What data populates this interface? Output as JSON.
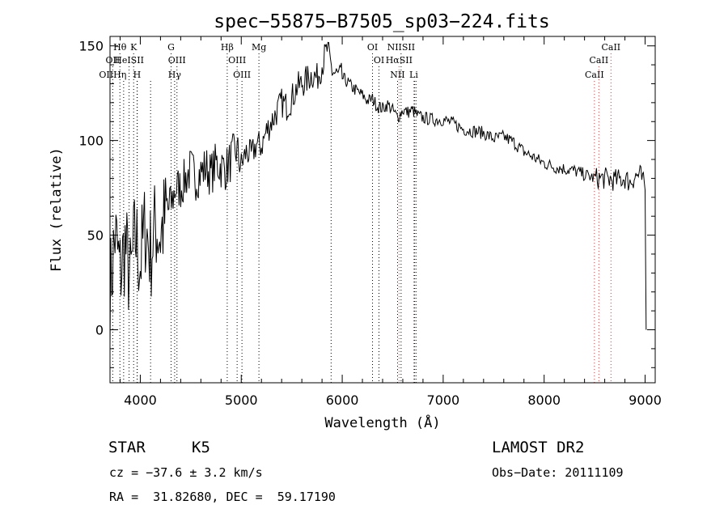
{
  "chart_data": {
    "type": "line",
    "title": "spec−55875−B7505_sp03−224.fits",
    "xlabel": "Wavelength (Å)",
    "ylabel": "Flux (relative)",
    "xlim": [
      3700,
      9100
    ],
    "ylim": [
      -28,
      155
    ],
    "xticks": [
      4000,
      5000,
      6000,
      7000,
      8000,
      9000
    ],
    "xtick_labels": [
      "4000",
      "5000",
      "6000",
      "7000",
      "8000",
      "9000"
    ],
    "yticks": [
      0,
      50,
      100,
      150
    ],
    "ytick_labels": [
      "0",
      "50",
      "100",
      "150"
    ],
    "grid": false,
    "series": [
      {
        "x": [
          3700,
          3750,
          3800,
          3850,
          3900,
          3950,
          4000,
          4050,
          4100,
          4150,
          4200,
          4250,
          4300,
          4350,
          4400,
          4450,
          4500,
          4550,
          4600,
          4650,
          4700,
          4750,
          4800,
          4850,
          4900,
          4950,
          5000,
          5050,
          5100,
          5150,
          5200,
          5250,
          5300,
          5350,
          5400,
          5450,
          5500,
          5550,
          5600,
          5650,
          5700,
          5750,
          5800,
          5850,
          5900,
          5950,
          6000,
          6050,
          6100,
          6150,
          6200,
          6250,
          6300,
          6350,
          6400,
          6450,
          6500,
          6550,
          6600,
          6650,
          6700,
          6750,
          6800,
          6900,
          7000,
          7100,
          7200,
          7300,
          7400,
          7500,
          7600,
          7700,
          7800,
          7900,
          8000,
          8100,
          8200,
          8300,
          8400,
          8500,
          8600,
          8700,
          8800,
          8850,
          8900,
          8950,
          9000,
          9010
        ],
        "y": [
          20,
          50,
          30,
          45,
          25,
          50,
          35,
          55,
          40,
          55,
          50,
          60,
          65,
          75,
          75,
          80,
          85,
          80,
          83,
          86,
          82,
          88,
          86,
          85,
          90,
          95,
          87,
          94,
          92,
          98,
          97,
          105,
          110,
          115,
          120,
          118,
          122,
          128,
          130,
          132,
          135,
          133,
          140,
          148,
          137,
          134,
          133,
          131,
          128,
          126,
          124,
          121,
          122,
          118,
          117,
          119,
          116,
          112,
          116,
          115,
          116,
          113,
          112,
          111,
          111,
          109,
          106,
          105,
          104,
          101,
          102,
          99,
          94,
          91,
          88,
          86,
          85,
          84,
          82,
          80,
          80,
          79,
          80,
          78,
          81,
          82,
          75,
          0
        ]
      }
    ],
    "lines": [
      {
        "name": "Hθ",
        "x": 3798,
        "row": 0,
        "color": "#000000"
      },
      {
        "name": "K",
        "x": 3934,
        "row": 0,
        "color": "#000000"
      },
      {
        "name": "G",
        "x": 4305,
        "row": 0,
        "color": "#000000"
      },
      {
        "name": "Hβ",
        "x": 4861,
        "row": 0,
        "color": "#000000"
      },
      {
        "name": "Mg",
        "x": 5175,
        "row": 0,
        "color": "#000000"
      },
      {
        "name": "OI",
        "x": 6300,
        "row": 0,
        "color": "#000000"
      },
      {
        "name": "NIISII",
        "x": 6583,
        "row": 0,
        "color": "#000000"
      },
      {
        "name": "CaII",
        "x": 8662,
        "row": 0,
        "color": "#c04040"
      },
      {
        "name": "OII",
        "x": 3727,
        "row": 1,
        "color": "#000000"
      },
      {
        "name": "HeISII",
        "x": 3889,
        "row": 1,
        "color": "#000000"
      },
      {
        "name": "OIII",
        "x": 4363,
        "row": 1,
        "color": "#000000"
      },
      {
        "name": "OIII",
        "x": 4959,
        "row": 1,
        "color": "#000000"
      },
      {
        "name": "OI",
        "x": 6364,
        "row": 1,
        "color": "#000000"
      },
      {
        "name": "HαSII",
        "x": 6563,
        "row": 1,
        "color": "#c04040"
      },
      {
        "name": "CaII",
        "x": 8542,
        "row": 1,
        "color": "#c04040"
      },
      {
        "name": "OIIHη",
        "x": 3727,
        "row": 2,
        "color": "#000000"
      },
      {
        "name": "H",
        "x": 3968,
        "row": 2,
        "color": "#000000"
      },
      {
        "name": "Hγ",
        "x": 4340,
        "row": 2,
        "color": "#000000"
      },
      {
        "name": "OIII",
        "x": 5007,
        "row": 2,
        "color": "#000000"
      },
      {
        "name": "NII",
        "x": 6548,
        "row": 2,
        "color": "#000000"
      },
      {
        "name": "Li",
        "x": 6708,
        "row": 2,
        "color": "#c04040"
      },
      {
        "name": "CaII",
        "x": 8498,
        "row": 2,
        "color": "#c04040"
      }
    ],
    "extra_dotted_lines": [
      3835,
      3970,
      4102,
      5890,
      6717,
      6731
    ]
  },
  "info": {
    "obj_class": "STAR",
    "subclass": "K5",
    "survey": "LAMOST DR2",
    "cz": "cz = −37.6 ± 3.2 km/s",
    "obs_date": "Obs−Date: 20111109",
    "coords": "RA =  31.82680, DEC =  59.17190"
  }
}
